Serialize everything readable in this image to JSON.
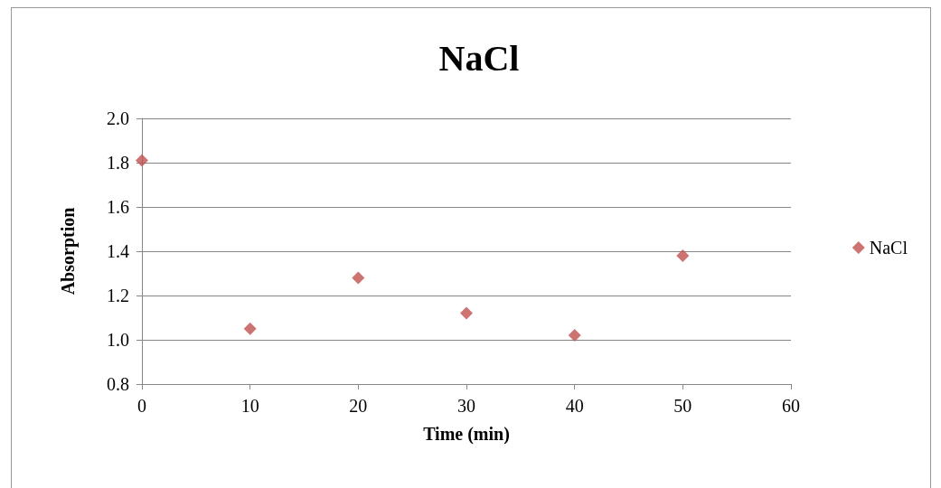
{
  "chart_data": {
    "type": "scatter",
    "title": "NaCl",
    "xlabel": "Time (min)",
    "ylabel": "Absorption",
    "x": [
      0,
      10,
      20,
      30,
      40,
      50
    ],
    "series": [
      {
        "name": "NaCl",
        "color": "#c0504d",
        "values": [
          1.81,
          1.05,
          1.28,
          1.12,
          1.02,
          1.38
        ]
      }
    ],
    "xlim": [
      0,
      60
    ],
    "xticks": [
      0,
      10,
      20,
      30,
      40,
      50,
      60
    ],
    "ylim": [
      0.8,
      2.0
    ],
    "yticks": [
      {
        "value": 0.8,
        "label": "0.8"
      },
      {
        "value": 1.0,
        "label": "1.0"
      },
      {
        "value": 1.2,
        "label": "1.2"
      },
      {
        "value": 1.4,
        "label": "1.4"
      },
      {
        "value": 1.6,
        "label": "1.6"
      },
      {
        "value": 1.8,
        "label": "1.8"
      },
      {
        "value": 2.0,
        "label": "2.0"
      }
    ],
    "grid": "y",
    "legend": "right",
    "marker": "diamond"
  }
}
